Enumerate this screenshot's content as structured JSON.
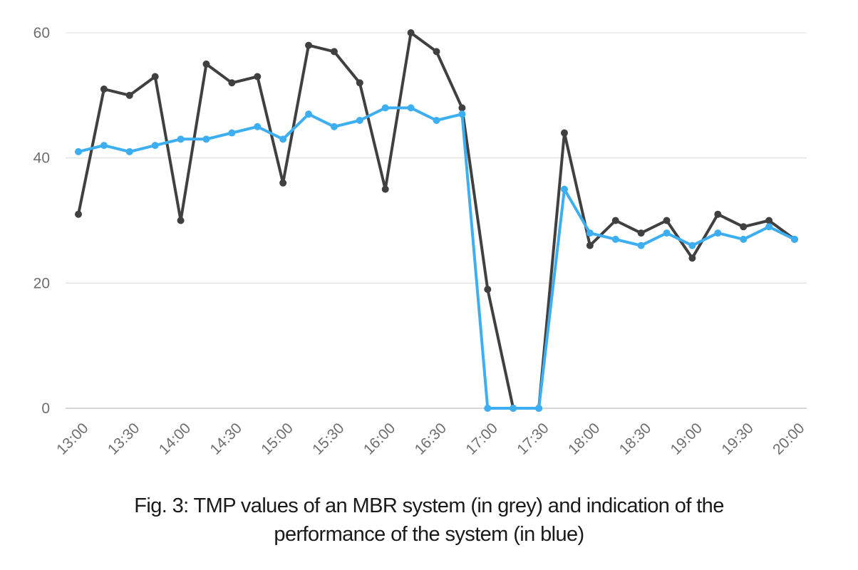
{
  "chart_data": {
    "type": "line",
    "categories": [
      "13:00",
      "13:15",
      "13:30",
      "13:45",
      "14:00",
      "14:15",
      "14:30",
      "14:45",
      "15:00",
      "15:15",
      "15:30",
      "15:45",
      "16:00",
      "16:15",
      "16:30",
      "16:45",
      "17:00",
      "17:15",
      "17:30",
      "17:45",
      "18:00",
      "18:15",
      "18:30",
      "18:45",
      "19:00",
      "19:15",
      "19:30",
      "19:45",
      "20:00"
    ],
    "x_tick_labels": [
      "13:00",
      "13:30",
      "14:00",
      "14:30",
      "15:00",
      "15:30",
      "16:00",
      "16:30",
      "17:00",
      "17:30",
      "18:00",
      "18:30",
      "19:00",
      "19:30",
      "20:00"
    ],
    "y_ticks": [
      0,
      20,
      40,
      60
    ],
    "ylim": [
      0,
      60
    ],
    "grid": "horizontal",
    "series": [
      {
        "color": "#404040",
        "values": [
          31,
          51,
          50,
          53,
          30,
          55,
          52,
          53,
          36,
          58,
          57,
          52,
          35,
          60,
          57,
          48,
          19,
          0,
          0,
          44,
          26,
          30,
          28,
          30,
          24,
          31,
          29,
          30,
          27
        ]
      },
      {
        "color": "#3daef0",
        "values": [
          41,
          42,
          41,
          42,
          43,
          43,
          44,
          45,
          43,
          47,
          45,
          46,
          48,
          48,
          46,
          47,
          0,
          0,
          0,
          35,
          28,
          27,
          26,
          28,
          26,
          28,
          27,
          29,
          27
        ]
      }
    ]
  },
  "caption": {
    "line1": "Fig. 3: TMP values of an MBR system (in grey) and indication of the",
    "line2": "performance of the system (in blue)"
  }
}
